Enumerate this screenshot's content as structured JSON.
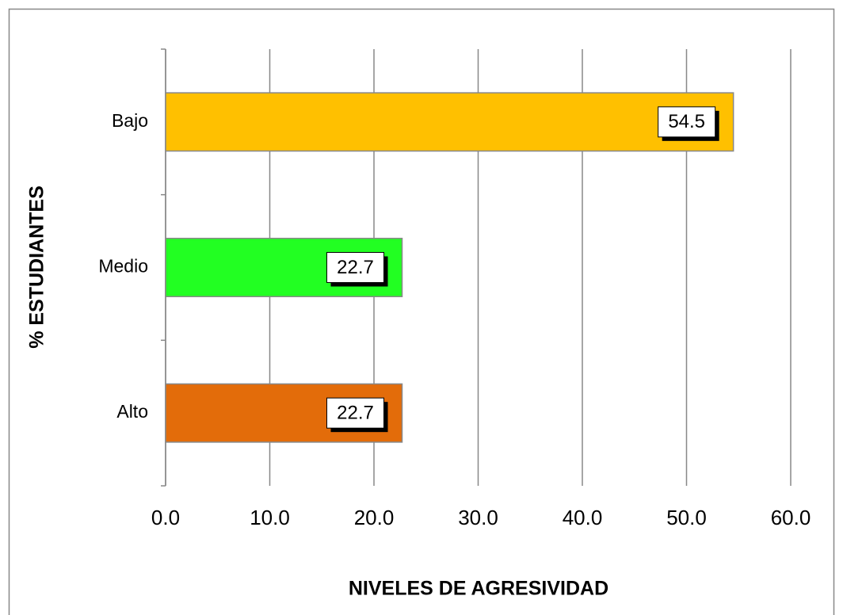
{
  "chart_data": {
    "type": "bar",
    "orientation": "horizontal",
    "xlabel": "NIVELES DE AGRESIVIDAD",
    "ylabel": "% ESTUDIANTES",
    "categories": [
      "Bajo",
      "Medio",
      "Alto"
    ],
    "values": [
      54.5,
      22.7,
      22.7
    ],
    "colors": [
      "#ffc000",
      "#22ff22",
      "#e36c0a"
    ],
    "xlim": [
      0,
      60
    ],
    "xticks": [
      {
        "value": 0,
        "label": "0.0"
      },
      {
        "value": 10,
        "label": "10.0"
      },
      {
        "value": 20,
        "label": "20.0"
      },
      {
        "value": 30,
        "label": "30.0"
      },
      {
        "value": 40,
        "label": "40.0"
      },
      {
        "value": 50,
        "label": "50.0"
      },
      {
        "value": 60,
        "label": "60.0"
      }
    ],
    "grid": true
  }
}
